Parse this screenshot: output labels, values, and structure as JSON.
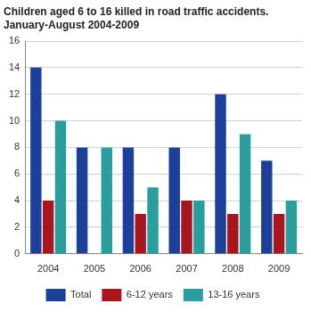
{
  "chart_data": {
    "type": "bar",
    "title": [
      "Children aged 6 to 16 killed in road traffic accidents.",
      "January-August 2004-2009"
    ],
    "categories": [
      "2004",
      "2005",
      "2006",
      "2007",
      "2008",
      "2009"
    ],
    "series": [
      {
        "name": "Total",
        "color": "#1c3f99",
        "values": [
          14,
          8,
          8,
          8,
          12,
          7
        ]
      },
      {
        "name": "6-12 years",
        "color": "#a8161f",
        "values": [
          4,
          0,
          3,
          4,
          3,
          3
        ]
      },
      {
        "name": "13-16 years",
        "color": "#2a9d9f",
        "values": [
          10,
          8,
          5,
          4,
          9,
          4
        ]
      }
    ],
    "ylim": [
      0,
      16
    ],
    "yticks": [
      0,
      2,
      4,
      6,
      8,
      10,
      12,
      14,
      16
    ],
    "grid": true,
    "legend": "bottom"
  }
}
